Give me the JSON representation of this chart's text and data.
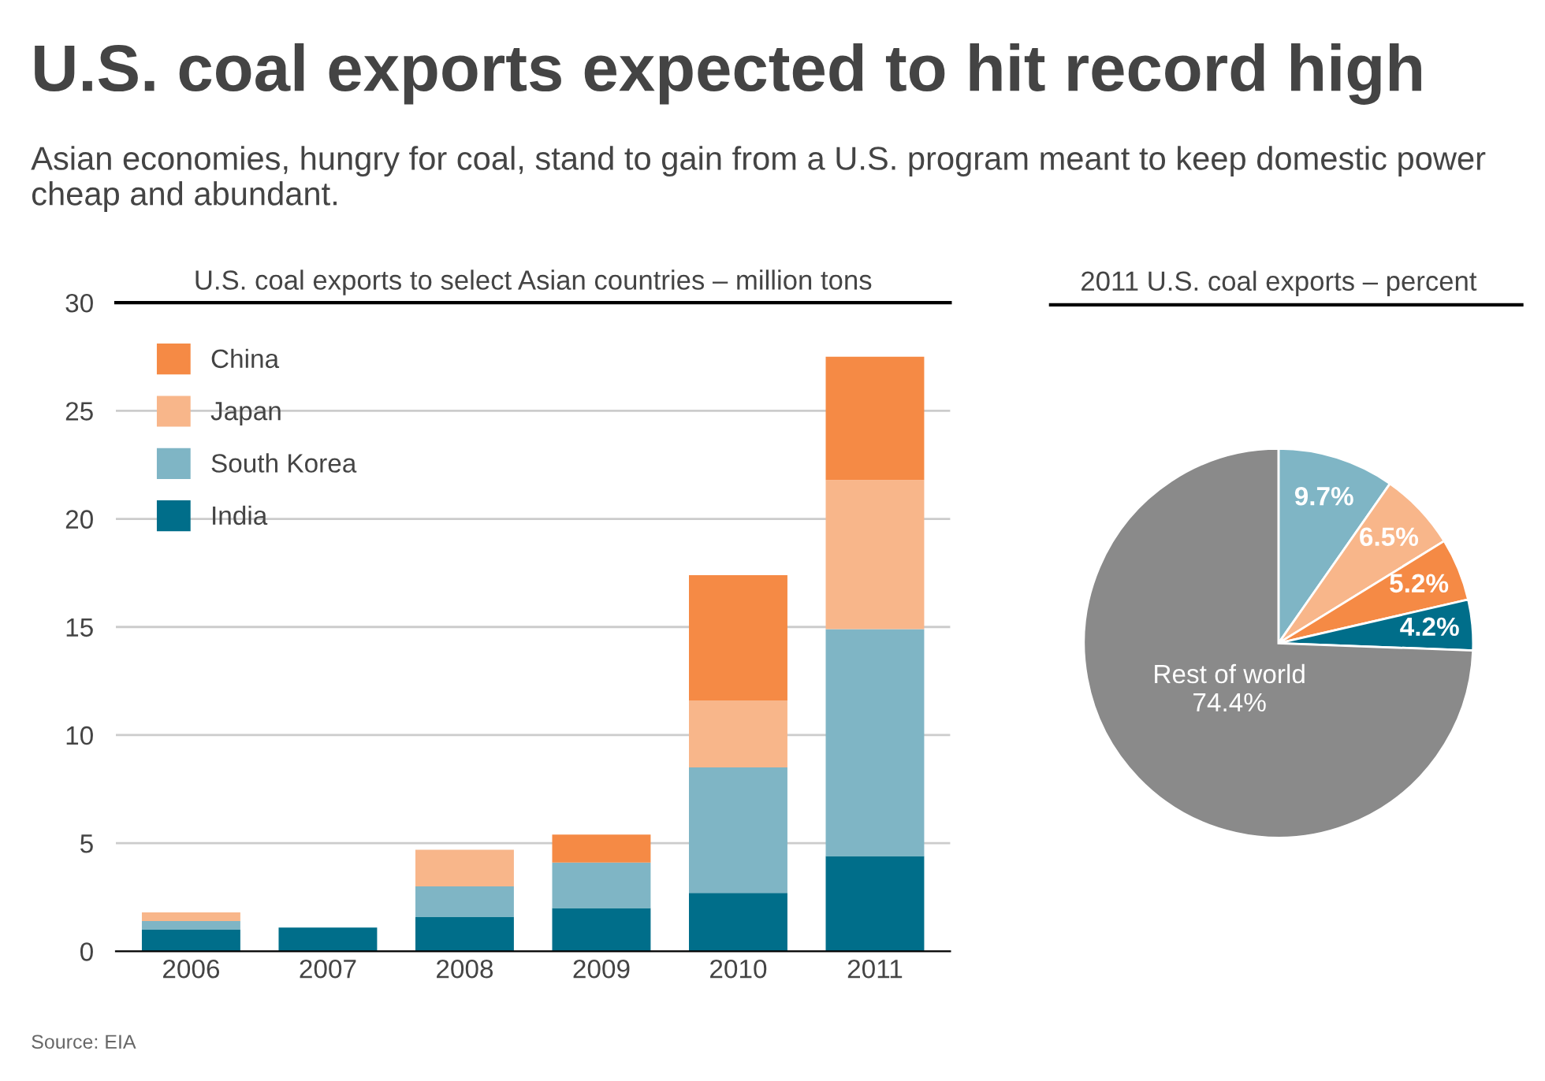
{
  "chart_data": [
    {
      "type": "other",
      "title": "U.S. coal exports expected to hit record high",
      "subtitle": "Asian economies, hungry for coal, stand to gain from a U.S. program meant to keep domestic power cheap and abundant.",
      "annotations": [
        "Source: EIA"
      ]
    },
    {
      "type": "bar",
      "title": "U.S. coal exports to select Asian countries – million tons",
      "stacked": true,
      "categories": [
        "2006",
        "2007",
        "2008",
        "2009",
        "2010",
        "2011"
      ],
      "series": [
        {
          "name": "India",
          "color": "#006e8a",
          "values": [
            1.0,
            1.1,
            1.6,
            2.0,
            2.7,
            4.4
          ]
        },
        {
          "name": "South Korea",
          "color": "#7fb5c5",
          "values": [
            0.4,
            0,
            1.4,
            2.1,
            5.8,
            10.5
          ]
        },
        {
          "name": "Japan",
          "color": "#f8b68a",
          "values": [
            0.4,
            0,
            1.7,
            0,
            3.1,
            6.9
          ]
        },
        {
          "name": "China",
          "color": "#f58a45",
          "values": [
            0,
            0,
            0,
            1.3,
            5.8,
            5.7
          ]
        }
      ],
      "ylim": [
        0,
        30
      ],
      "yticks": [
        0,
        5,
        10,
        15,
        20,
        25,
        30
      ],
      "grid": "y",
      "legend": "top left"
    },
    {
      "type": "pie",
      "title": "2011 U.S. coal exports – percent",
      "categories": [
        null,
        null,
        null,
        null,
        "Rest of world"
      ],
      "values": [
        9.7,
        6.5,
        5.2,
        4.2,
        74.4
      ],
      "colors": [
        "#7fb5c5",
        "#f8b68a",
        "#f58a45",
        "#006e8a",
        "#8a8a8a"
      ],
      "value_labels": [
        "9.7%",
        "6.5%",
        "5.2%",
        "4.2%",
        "74.4%"
      ]
    }
  ]
}
